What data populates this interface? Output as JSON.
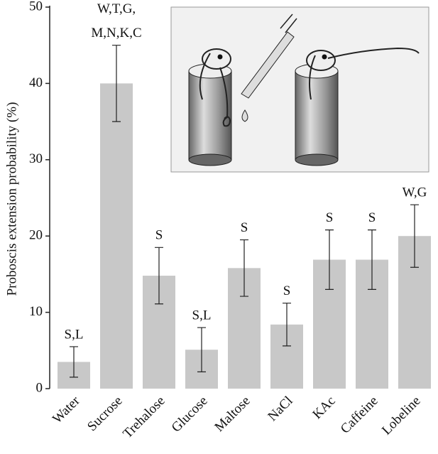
{
  "chart_data": {
    "type": "bar",
    "y_label": "Proboscis extension probability (%)",
    "categories": [
      "Water",
      "Sucrose",
      "Trehalose",
      "Glucose",
      "Maltose",
      "NaCl",
      "KAc",
      "Caffeine",
      "Lobeline"
    ],
    "values": [
      3.5,
      40,
      14.8,
      5.1,
      15.8,
      8.4,
      16.9,
      16.9,
      20.0
    ],
    "errors": [
      2.0,
      5.0,
      3.7,
      2.9,
      3.7,
      2.8,
      3.9,
      3.9,
      4.1
    ],
    "annotations": [
      [
        "S,L"
      ],
      [
        "W,T,G,",
        "M,N,K,C"
      ],
      [
        "S"
      ],
      [
        "S,L"
      ],
      [
        "S"
      ],
      [
        "S"
      ],
      [
        "S"
      ],
      [
        "S"
      ],
      [
        "W,G"
      ]
    ],
    "color": "#c8c8c8",
    "ylim": [
      0,
      50
    ],
    "yticks": [
      0,
      10,
      20,
      30,
      40,
      50
    ]
  }
}
